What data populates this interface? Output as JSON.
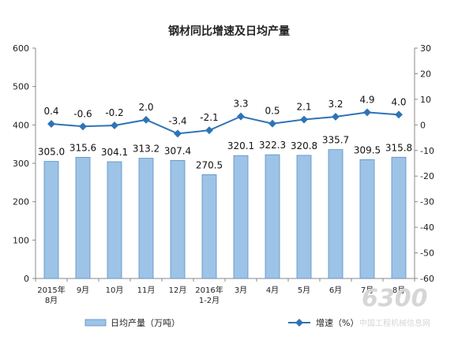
{
  "chart_data": {
    "type": "bar",
    "title": "钢材同比增速及日均产量",
    "categories": [
      [
        "2015年",
        "8月"
      ],
      [
        "9月"
      ],
      [
        "10月"
      ],
      [
        "11月"
      ],
      [
        "12月"
      ],
      [
        "2016年",
        "1-2月"
      ],
      [
        "3月"
      ],
      [
        "4月"
      ],
      [
        "5月"
      ],
      [
        "6月"
      ],
      [
        "7月"
      ],
      [
        "8月"
      ]
    ],
    "left_axis": {
      "min": 0,
      "max": 600,
      "step": 100,
      "ticks": [
        "0",
        "100",
        "200",
        "300",
        "400",
        "500",
        "600"
      ]
    },
    "right_axis": {
      "min": -60,
      "max": 30,
      "step": 10,
      "ticks": [
        "-60",
        "-50",
        "-40",
        "-30",
        "-20",
        "-10",
        "0",
        "10",
        "20",
        "30"
      ]
    },
    "series": [
      {
        "name": "日均产量（万吨）",
        "type": "bar",
        "axis": "left",
        "color": "#9dc3e6",
        "values": [
          305.0,
          315.6,
          304.1,
          313.2,
          307.4,
          270.5,
          320.1,
          322.3,
          320.8,
          335.7,
          309.5,
          315.8
        ],
        "labels": [
          "305.0",
          "315.6",
          "304.1",
          "313.2",
          "307.4",
          "270.5",
          "320.1",
          "322.3",
          "320.8",
          "335.7",
          "309.5",
          "315.8"
        ]
      },
      {
        "name": "增速（%）",
        "type": "line",
        "axis": "right",
        "color": "#2e74b5",
        "values": [
          0.4,
          -0.6,
          -0.2,
          2.0,
          -3.4,
          -2.1,
          3.3,
          0.5,
          2.1,
          3.2,
          4.9,
          4.0
        ],
        "labels": [
          "0.4",
          "-0.6",
          "-0.2",
          "2.0",
          "-3.4",
          "-2.1",
          "3.3",
          "0.5",
          "2.1",
          "3.2",
          "4.9",
          "4.0"
        ]
      }
    ],
    "legend_position": "bottom",
    "grid": false
  },
  "watermark": {
    "main": "6300",
    "sub": "中国工程机械信息网"
  }
}
